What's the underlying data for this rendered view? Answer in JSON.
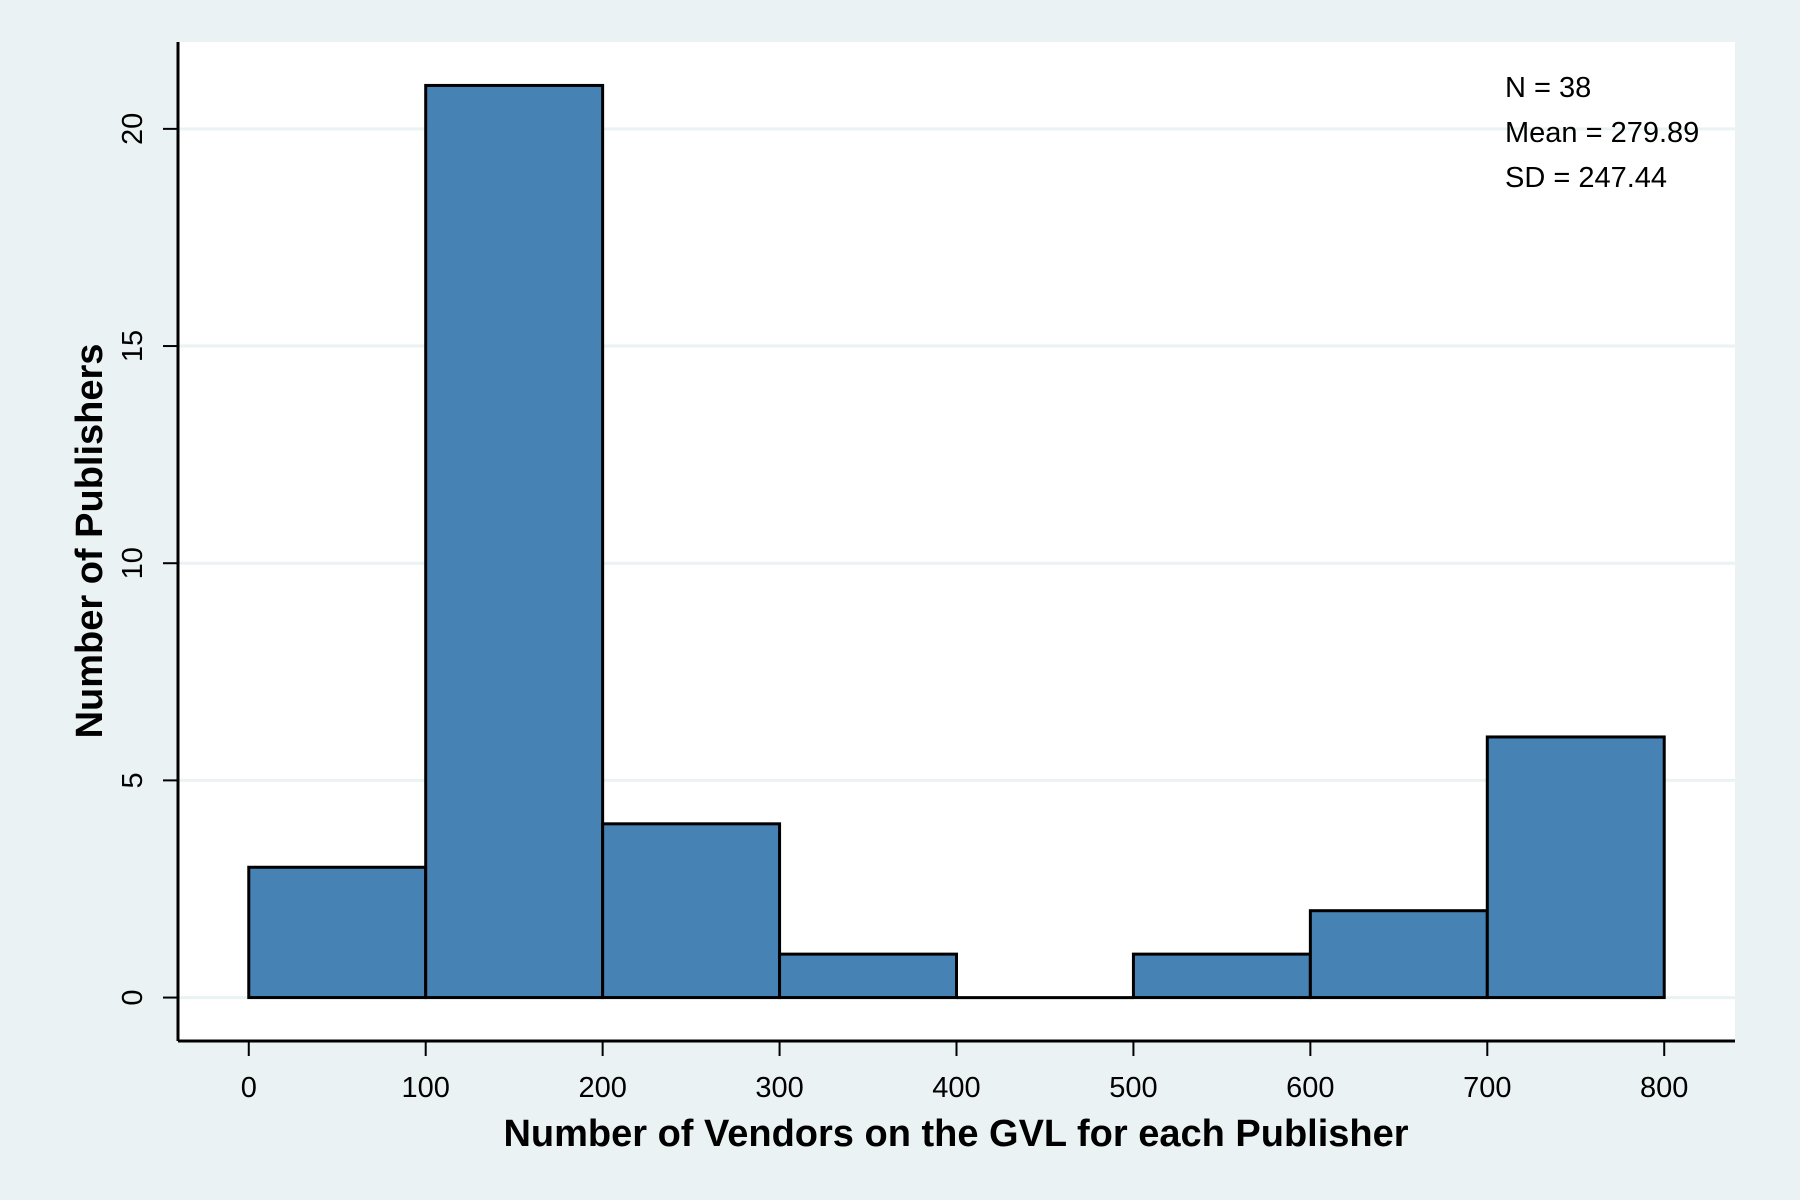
{
  "chart_data": {
    "type": "bar",
    "title": "",
    "xlabel": "Number of Vendors on the GVL for each Publisher",
    "ylabel": "Number of Publishers",
    "bin_edges": [
      0,
      100,
      200,
      300,
      400,
      500,
      600,
      700,
      800
    ],
    "values": [
      3,
      21,
      4,
      1,
      0,
      1,
      2,
      6
    ],
    "xlim": [
      -40,
      840
    ],
    "ylim": [
      -1,
      22
    ],
    "x_ticks": [
      "0",
      "100",
      "200",
      "300",
      "400",
      "500",
      "600",
      "700",
      "800"
    ],
    "y_ticks": [
      "0",
      "5",
      "10",
      "15",
      "20"
    ],
    "grid": true,
    "annotations": [
      "N = 38",
      "Mean = 279.89",
      "SD = 247.44"
    ],
    "annotation_placement": "top-right",
    "colors": {
      "bar_fill": "#4682b4",
      "bar_edge": "#000000",
      "plot_background": "#ffffff",
      "outer_background": "#eaf2f3",
      "grid": "#eaf2f3"
    }
  }
}
